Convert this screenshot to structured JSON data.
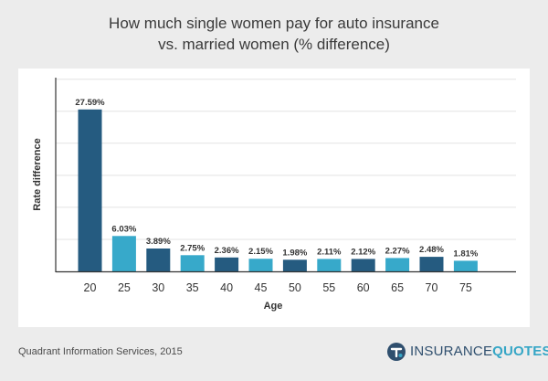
{
  "title": {
    "line1": "How much single women pay for auto insurance",
    "line2": "vs. married women (% difference)"
  },
  "footer": {
    "source": "Quadrant Information Services, 2015",
    "logo_part1": "INSURANCE",
    "logo_part2": "QUOTES",
    "logo_icon": "insurancequotes-logo-icon"
  },
  "colors": {
    "dark_bar": "#255b80",
    "light_bar": "#37a9ca",
    "background": "#ececec",
    "panel": "#ffffff",
    "grid": "#e3e3e3",
    "axis": "#333333"
  },
  "chart_data": {
    "type": "bar",
    "title": "How much single women pay for auto insurance vs. married women (% difference)",
    "xlabel": "Age",
    "ylabel": "Rate difference",
    "categories": [
      "20",
      "25",
      "30",
      "35",
      "40",
      "45",
      "50",
      "55",
      "60",
      "65",
      "70",
      "75"
    ],
    "values": [
      27.59,
      6.03,
      3.89,
      2.75,
      2.36,
      2.15,
      1.98,
      2.11,
      2.12,
      2.27,
      2.48,
      1.81
    ],
    "value_labels": [
      "27.59%",
      "6.03%",
      "3.89%",
      "2.75%",
      "2.36%",
      "2.15%",
      "1.98%",
      "2.11%",
      "2.12%",
      "2.27%",
      "2.48%",
      "1.81%"
    ],
    "bar_colors": [
      "#255b80",
      "#37a9ca",
      "#255b80",
      "#37a9ca",
      "#255b80",
      "#37a9ca",
      "#255b80",
      "#37a9ca",
      "#255b80",
      "#37a9ca",
      "#255b80",
      "#37a9ca"
    ],
    "ylim": [
      0,
      33
    ],
    "grid": true,
    "legend": "none"
  }
}
